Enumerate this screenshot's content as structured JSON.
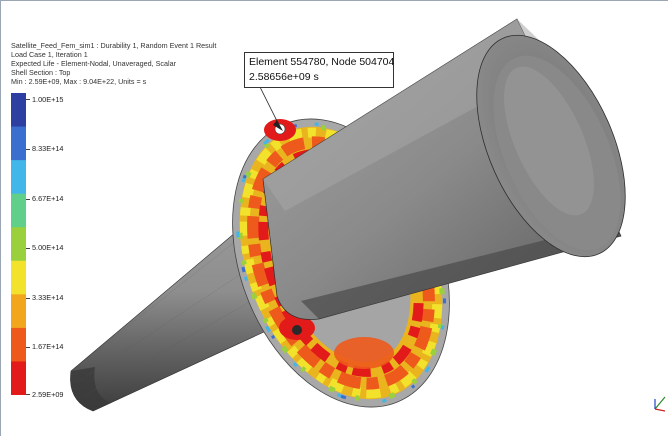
{
  "header": {
    "line1": "Satellite_Feed_Fem_sim1 : Durability 1, Random Event 1 Result",
    "line2": "Load Case 1, Iteration 1",
    "line3": "Expected Life - Element-Nodal, Unaveraged, Scalar",
    "line4": "Shell Section : Top",
    "line5": "Min : 2.59E+09, Max : 9.04E+22, Units = s"
  },
  "legend": {
    "ticks": [
      "1.00E+15",
      "8.33E+14",
      "6.67E+14",
      "5.00E+14",
      "3.33E+14",
      "1.67E+14",
      "2.59E+09"
    ],
    "colors": [
      "#2d3fa0",
      "#3a6fd0",
      "#41b6e8",
      "#5fcf8a",
      "#9ad03c",
      "#f2e22c",
      "#f2a61e",
      "#ee5a1c",
      "#e21a1a"
    ]
  },
  "probe": {
    "line1": "Element 554780, Node 504704",
    "line2": "2.58656e+09 s"
  },
  "model": {
    "cone_color": "#7a7a7a",
    "flange_hot_color": "#e32219"
  }
}
